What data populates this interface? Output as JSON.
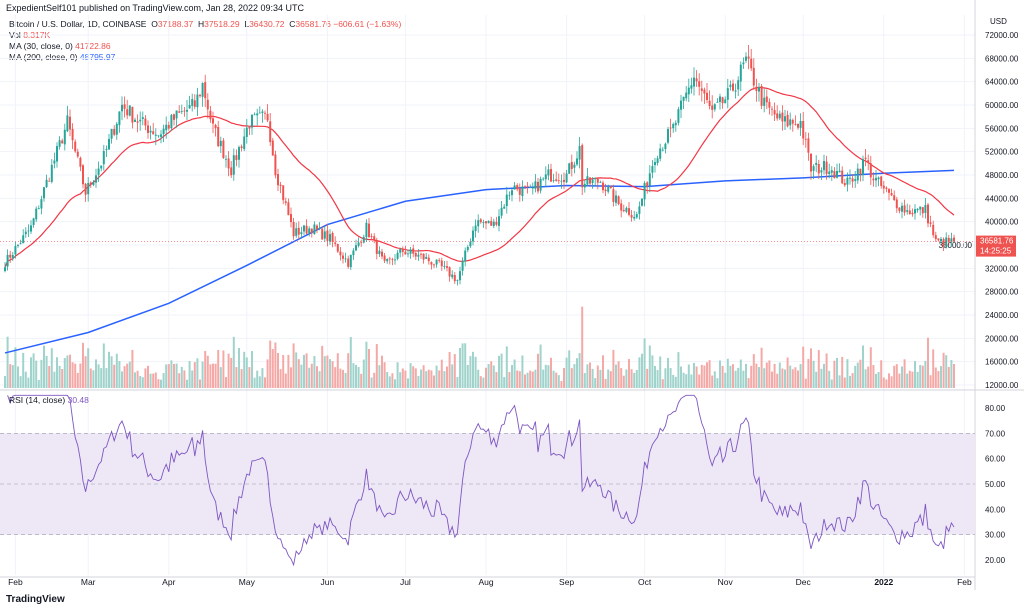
{
  "header": {
    "published": "ExpedientSelf101 published on TradingView.com, Jan 28, 2022 09:34 UTC"
  },
  "legend": {
    "symbol": "Bitcoin / U.S. Dollar, 1D, COINBASE",
    "o_label": "O",
    "o": "37188.37",
    "h_label": "H",
    "h": "37518.29",
    "l_label": "L",
    "l": "36430.72",
    "c_label": "C",
    "c": "36581.76",
    "change": "−606.61 (−1.63%)",
    "vol_label": "Vol",
    "vol": "8.317K",
    "ma30_label": "MA (30, close, 0)",
    "ma30": "41722.86",
    "ma200_label": "MA (200, close, 0)",
    "ma200": "48795.97",
    "rsi_label": "RSI (14, close)",
    "rsi": "30.48"
  },
  "currency": "USD",
  "last_price": {
    "price": "36581.76",
    "countdown": "14:25:25"
  },
  "logo": "TradingView",
  "colors": {
    "up": "#26a69a",
    "down": "#ef5350",
    "ma30": "#f23645",
    "ma200": "#2962ff",
    "rsi": "#7e57c2",
    "rsi_band": "#ede7f6"
  },
  "chart_data": {
    "type": "candlestick",
    "price_ylim": [
      12000,
      72000
    ],
    "price_ticks": [
      "72000.00",
      "68000.00",
      "64000.00",
      "60000.00",
      "56000.00",
      "52000.00",
      "48000.00",
      "44000.00",
      "40000.00",
      "36000.00",
      "32000.00",
      "28000.00",
      "24000.00",
      "20000.00",
      "16000.00",
      "12000.00"
    ],
    "rsi_ticks": [
      "80.00",
      "70.00",
      "60.00",
      "50.00",
      "40.00",
      "30.00",
      "20.00"
    ],
    "x_ticks": [
      "Feb",
      "Mar",
      "Apr",
      "May",
      "Jun",
      "Jul",
      "Aug",
      "Sep",
      "Oct",
      "Nov",
      "Dec",
      "2022",
      "Feb"
    ],
    "x_tick_dates": [
      "2021-02-01",
      "2021-03-01",
      "2021-04-01",
      "2021-05-01",
      "2021-06-01",
      "2021-07-01",
      "2021-08-01",
      "2021-09-01",
      "2021-10-01",
      "2021-11-01",
      "2021-12-01",
      "2022-01-01",
      "2022-02-01"
    ],
    "date_range": [
      "2021-01-28",
      "2022-01-28"
    ],
    "close_points": [
      [
        "2021-01-28",
        33000
      ],
      [
        "2021-02-07",
        39000
      ],
      [
        "2021-02-14",
        48000
      ],
      [
        "2021-02-21",
        57000
      ],
      [
        "2021-02-28",
        45000
      ],
      [
        "2021-03-07",
        51000
      ],
      [
        "2021-03-14",
        60000
      ],
      [
        "2021-03-21",
        57000
      ],
      [
        "2021-03-28",
        55000
      ],
      [
        "2021-04-04",
        58000
      ],
      [
        "2021-04-11",
        60000
      ],
      [
        "2021-04-14",
        63500
      ],
      [
        "2021-04-18",
        56000
      ],
      [
        "2021-04-25",
        49000
      ],
      [
        "2021-05-02",
        57000
      ],
      [
        "2021-05-09",
        58000
      ],
      [
        "2021-05-12",
        49000
      ],
      [
        "2021-05-19",
        38000
      ],
      [
        "2021-05-26",
        39000
      ],
      [
        "2021-06-02",
        37000
      ],
      [
        "2021-06-09",
        33000
      ],
      [
        "2021-06-16",
        39000
      ],
      [
        "2021-06-23",
        32500
      ],
      [
        "2021-06-30",
        35000
      ],
      [
        "2021-07-07",
        34000
      ],
      [
        "2021-07-14",
        32500
      ],
      [
        "2021-07-21",
        30000
      ],
      [
        "2021-07-28",
        40000
      ],
      [
        "2021-08-04",
        39500
      ],
      [
        "2021-08-11",
        46000
      ],
      [
        "2021-08-18",
        45000
      ],
      [
        "2021-08-25",
        48000
      ],
      [
        "2021-09-01",
        48000
      ],
      [
        "2021-09-06",
        52500
      ],
      [
        "2021-09-07",
        46500
      ],
      [
        "2021-09-14",
        47000
      ],
      [
        "2021-09-21",
        43000
      ],
      [
        "2021-09-28",
        41000
      ],
      [
        "2021-10-05",
        51500
      ],
      [
        "2021-10-12",
        56000
      ],
      [
        "2021-10-20",
        65000
      ],
      [
        "2021-10-27",
        58500
      ],
      [
        "2021-11-03",
        62000
      ],
      [
        "2021-11-09",
        67500
      ],
      [
        "2021-11-16",
        60000
      ],
      [
        "2021-11-23",
        57000
      ],
      [
        "2021-11-30",
        57000
      ],
      [
        "2021-12-04",
        49000
      ],
      [
        "2021-12-11",
        49500
      ],
      [
        "2021-12-18",
        46500
      ],
      [
        "2021-12-25",
        50500
      ],
      [
        "2021-12-28",
        47500
      ],
      [
        "2022-01-05",
        43500
      ],
      [
        "2022-01-10",
        41800
      ],
      [
        "2022-01-17",
        42000
      ],
      [
        "2022-01-21",
        36500
      ],
      [
        "2022-01-24",
        36500
      ],
      [
        "2022-01-28",
        36581.76
      ]
    ],
    "ma200_points": [
      [
        "2021-01-28",
        17500
      ],
      [
        "2021-03-01",
        21000
      ],
      [
        "2021-04-01",
        26000
      ],
      [
        "2021-05-01",
        32500
      ],
      [
        "2021-06-01",
        39500
      ],
      [
        "2021-07-01",
        43500
      ],
      [
        "2021-08-01",
        45500
      ],
      [
        "2021-09-01",
        46200
      ],
      [
        "2021-10-01",
        46000
      ],
      [
        "2021-11-01",
        47000
      ],
      [
        "2021-12-01",
        47500
      ],
      [
        "2022-01-01",
        48300
      ],
      [
        "2022-01-28",
        48795.97
      ]
    ]
  }
}
